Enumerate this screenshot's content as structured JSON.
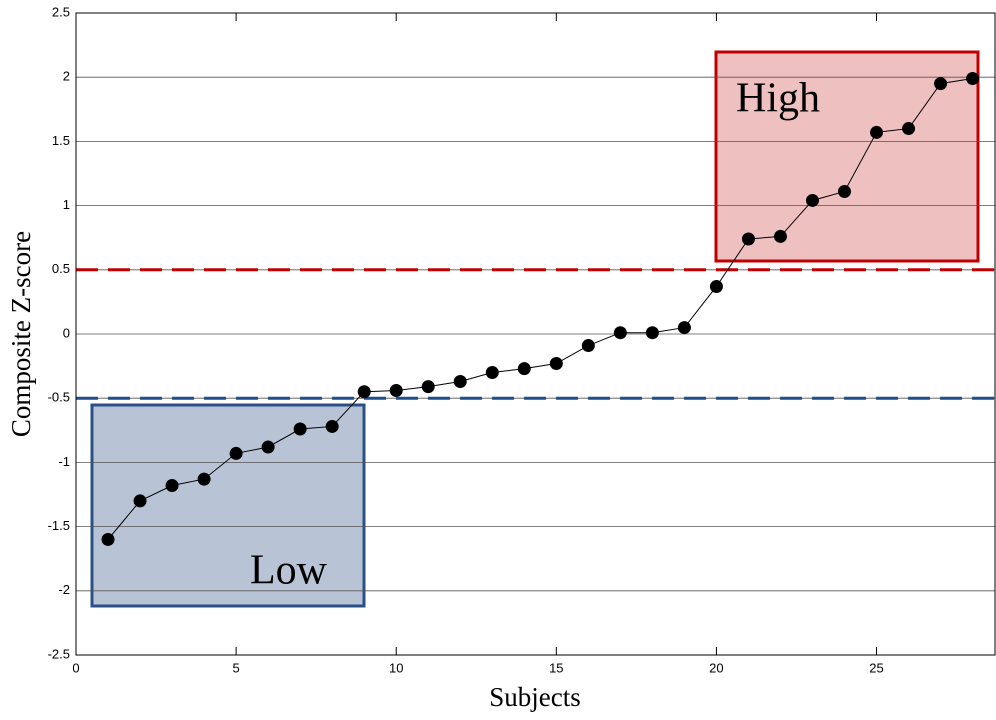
{
  "chart_data": {
    "type": "line",
    "x_label": "Subjects",
    "y_label": "Composite Z-score",
    "x": [
      1,
      2,
      3,
      4,
      5,
      6,
      7,
      8,
      9,
      10,
      11,
      12,
      13,
      14,
      15,
      16,
      17,
      18,
      19,
      20,
      21,
      22,
      23,
      24,
      25,
      26,
      27,
      28
    ],
    "series": [
      {
        "color": "#000000",
        "values": [
          -1.6,
          -1.3,
          -1.18,
          -1.13,
          -0.93,
          -0.88,
          -0.74,
          -0.72,
          -0.45,
          -0.44,
          -0.41,
          -0.37,
          -0.3,
          -0.27,
          -0.23,
          -0.09,
          0.01,
          0.01,
          0.05,
          0.37,
          0.74,
          0.76,
          1.04,
          1.11,
          1.57,
          1.6,
          1.95,
          1.99
        ]
      }
    ],
    "xlim": [
      0,
      28.7
    ],
    "xticks": [
      0,
      5,
      10,
      15,
      20,
      25
    ],
    "ylim": [
      -2.5,
      2.5
    ],
    "yticks": [
      -2.5,
      -2,
      -1.5,
      -1,
      -0.5,
      0,
      0.5,
      1,
      1.5,
      2,
      2.5
    ],
    "grid": true,
    "reference_lines": [
      {
        "value": 0.5,
        "color": "#c00000"
      },
      {
        "value": -0.5,
        "color": "#1f4e8c"
      }
    ],
    "annotations": [
      "High",
      "Low"
    ]
  }
}
